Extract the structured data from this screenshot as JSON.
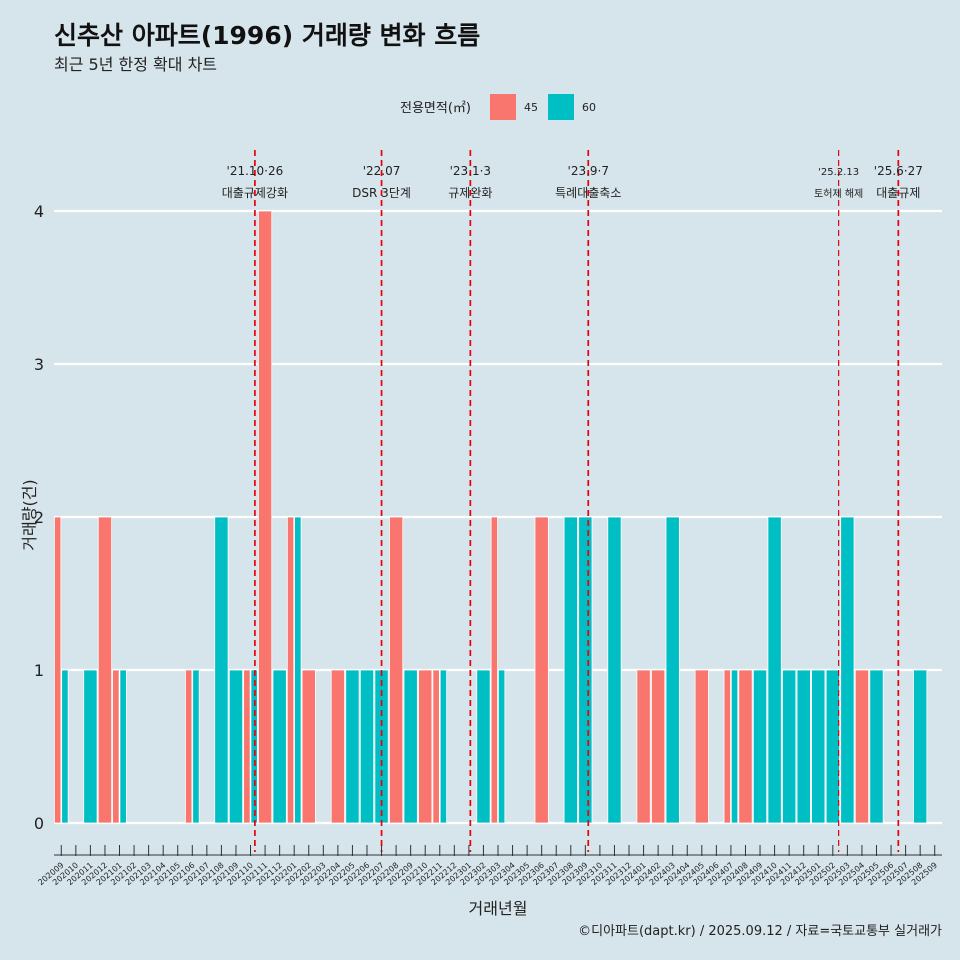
{
  "title": "신추산 아파트(1996) 거래량 변화 흐름",
  "subtitle": "최근 5년 한정 확대 차트",
  "caption": "©디아파트(dapt.kr) / 2025.09.12 / 자료=국토교통부 실거래가",
  "legend": {
    "title": "전용면적(㎡)",
    "items": [
      {
        "label": "45",
        "color": "#f8766d"
      },
      {
        "label": "60",
        "color": "#00bfc4"
      }
    ]
  },
  "chart_data": {
    "type": "bar",
    "xlabel": "거래년월",
    "ylabel": "거래량(건)",
    "ylim": [
      0,
      4
    ],
    "yticks": [
      "0",
      "1",
      "2",
      "3",
      "4"
    ],
    "categories": [
      "202009",
      "202010",
      "202011",
      "202012",
      "202101",
      "202102",
      "202103",
      "202104",
      "202105",
      "202106",
      "202107",
      "202108",
      "202109",
      "202110",
      "202111",
      "202112",
      "202201",
      "202202",
      "202203",
      "202204",
      "202205",
      "202206",
      "202207",
      "202208",
      "202209",
      "202210",
      "202211",
      "202212",
      "202301",
      "202302",
      "202303",
      "202304",
      "202305",
      "202306",
      "202307",
      "202308",
      "202309",
      "202310",
      "202311",
      "202312",
      "202401",
      "202402",
      "202403",
      "202404",
      "202405",
      "202406",
      "202407",
      "202408",
      "202409",
      "202410",
      "202411",
      "202412",
      "202501",
      "202502",
      "202503",
      "202504",
      "202505",
      "202506",
      "202507",
      "202508",
      "202509"
    ],
    "series": [
      {
        "name": "45",
        "color": "#f8766d",
        "values": [
          2,
          0,
          0,
          2,
          1,
          0,
          0,
          0,
          0,
          1,
          0,
          0,
          0,
          1,
          4,
          0,
          2,
          1,
          0,
          1,
          0,
          0,
          0,
          2,
          0,
          1,
          1,
          0,
          0,
          0,
          2,
          0,
          0,
          2,
          0,
          0,
          0,
          0,
          0,
          0,
          1,
          1,
          0,
          0,
          1,
          0,
          1,
          1,
          0,
          0,
          0,
          0,
          0,
          0,
          0,
          1,
          0,
          0,
          0,
          0,
          0
        ]
      },
      {
        "name": "60",
        "color": "#00bfc4",
        "values": [
          1,
          0,
          1,
          0,
          1,
          0,
          0,
          0,
          0,
          1,
          0,
          2,
          1,
          1,
          0,
          1,
          2,
          0,
          0,
          0,
          1,
          1,
          1,
          0,
          1,
          0,
          1,
          0,
          0,
          1,
          1,
          0,
          0,
          0,
          0,
          2,
          2,
          0,
          2,
          0,
          0,
          0,
          2,
          0,
          0,
          0,
          1,
          0,
          1,
          2,
          1,
          1,
          1,
          1,
          2,
          0,
          1,
          0,
          0,
          1,
          0
        ]
      }
    ],
    "events": [
      {
        "index": 13.3,
        "date": "'21.10·26",
        "label": "대출규제강화",
        "small": false
      },
      {
        "index": 22.0,
        "date": "'22.07",
        "label": "DSR 3단계",
        "small": false
      },
      {
        "index": 28.1,
        "date": "'23.1·3",
        "label": "규제완화",
        "small": false
      },
      {
        "index": 36.2,
        "date": "'23.9·7",
        "label": "특례대출축소",
        "small": false
      },
      {
        "index": 53.4,
        "date": "'25.2.13",
        "label": "토허제 해제",
        "small": true
      },
      {
        "index": 57.5,
        "date": "'25.6·27",
        "label": "대출규제",
        "small": false
      }
    ]
  }
}
